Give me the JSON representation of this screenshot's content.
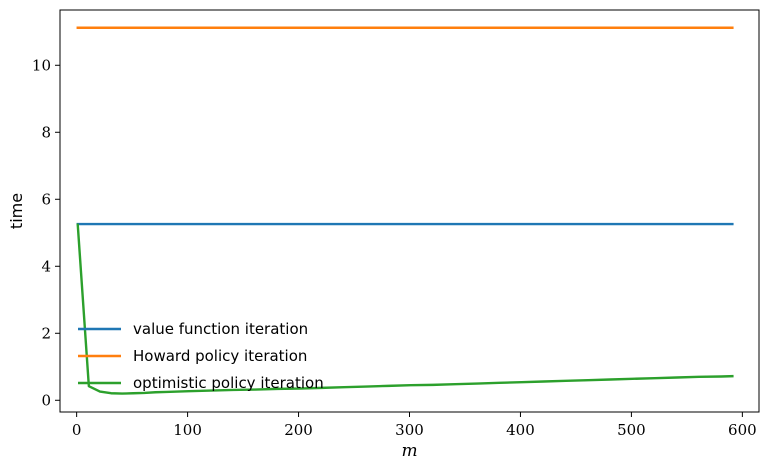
{
  "chart_data": {
    "type": "line",
    "title": "",
    "xlabel": "m",
    "ylabel": "time",
    "xlim": [
      -15,
      615
    ],
    "ylim": [
      -0.35,
      11.65
    ],
    "xticks": [
      0,
      100,
      200,
      300,
      400,
      500,
      600
    ],
    "yticks": [
      0,
      2,
      4,
      6,
      8,
      10
    ],
    "grid": false,
    "legend_position": "lower-left",
    "series": [
      {
        "name": "value function iteration",
        "color": "#1f77b4",
        "x": [
          1,
          591
        ],
        "y": [
          5.26,
          5.26
        ]
      },
      {
        "name": "Howard policy iteration",
        "color": "#ff7f0e",
        "x": [
          1,
          591
        ],
        "y": [
          11.12,
          11.12
        ]
      },
      {
        "name": "optimistic policy iteration",
        "color": "#2ca02c",
        "x": [
          1,
          11,
          21,
          31,
          41,
          51,
          61,
          71,
          81,
          91,
          101,
          121,
          141,
          161,
          181,
          201,
          221,
          241,
          261,
          281,
          301,
          321,
          341,
          361,
          381,
          401,
          421,
          441,
          461,
          481,
          501,
          521,
          541,
          561,
          581,
          591
        ],
        "y": [
          5.24,
          0.42,
          0.26,
          0.21,
          0.2,
          0.21,
          0.22,
          0.24,
          0.25,
          0.26,
          0.27,
          0.29,
          0.31,
          0.32,
          0.34,
          0.35,
          0.37,
          0.39,
          0.41,
          0.43,
          0.45,
          0.46,
          0.48,
          0.5,
          0.52,
          0.54,
          0.56,
          0.58,
          0.6,
          0.62,
          0.64,
          0.66,
          0.68,
          0.7,
          0.71,
          0.72
        ]
      }
    ]
  }
}
